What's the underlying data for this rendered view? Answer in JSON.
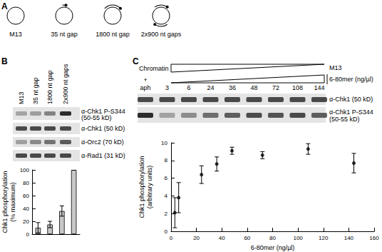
{
  "chart_data": [
    {
      "type": "bar",
      "ylabel": "Chk1 phosphorylation\n(% maximum)",
      "categories": [
        "M13",
        "35 nt gap",
        "1800 nt gap",
        "2x900 nt gaps"
      ],
      "values": [
        10,
        15,
        36,
        100
      ],
      "errors": [
        8,
        5,
        8,
        0
      ],
      "ylim": [
        0,
        100
      ],
      "yticks": [
        0,
        20,
        40,
        60,
        80,
        100
      ],
      "color": "#c8c8c8",
      "tick_labels": "y",
      "grid": false
    },
    {
      "type": "scatter",
      "xlabel": "6-80mer (ng/µl)",
      "ylabel": "Chk1 phosphorylation\n(arbitrary units)",
      "x": [
        3,
        6,
        24,
        36,
        48,
        72,
        108,
        144
      ],
      "values": [
        2.1,
        3.8,
        6.4,
        7.6,
        9.1,
        8.6,
        9.3,
        7.7
      ],
      "errors": [
        1.7,
        1.7,
        1.0,
        0.8,
        0.4,
        0.4,
        0.6,
        1.1
      ],
      "xlim": [
        0,
        160
      ],
      "xticks": [
        0,
        20,
        40,
        60,
        80,
        100,
        120,
        140,
        160
      ],
      "ylim": [
        0,
        10
      ],
      "yticks": [
        0,
        2,
        4,
        6,
        8,
        10
      ],
      "color": "#000000",
      "marker": "circle",
      "grid": false
    }
  ],
  "figure": {
    "panel_labels": [
      "A",
      "B",
      "C"
    ],
    "blots_B": [
      {
        "label": "α-Chk1 P-S344",
        "sublabel": "(50-55 kD)"
      },
      {
        "label": "α-Chk1 (50 kD)"
      },
      {
        "label": "α-Orc2 (70 kD)"
      },
      {
        "label": "α-Rad1 (31 kD)"
      }
    ],
    "panel_C": {
      "header": "Chromatin",
      "first_lane": "+",
      "first_lane_note": "aph",
      "top_triangle": "M13",
      "blots": [
        {
          "label": "α-Chk1 (50 kD)"
        },
        {
          "label": "α-Chk1 P-S344",
          "sublabel": "(50-55 kD)"
        }
      ]
    }
  }
}
